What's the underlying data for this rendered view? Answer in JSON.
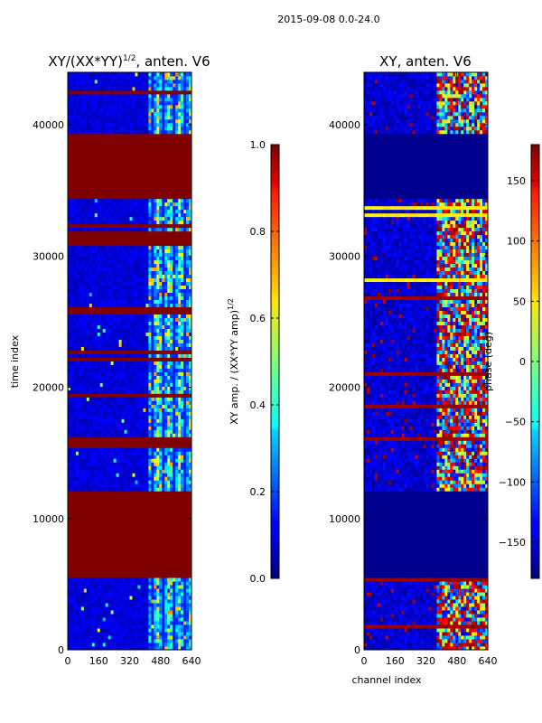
{
  "figure": {
    "suptitle": "2015-09-08 0.0-24.0"
  },
  "chart_data": [
    {
      "type": "heatmap",
      "title_main": "XY/(XX*YY)",
      "title_sup": "1/2",
      "title_tail": ", anten. V6",
      "xlabel": "",
      "ylabel": "time index",
      "xlim": [
        0,
        640
      ],
      "ylim": [
        0,
        44000
      ],
      "xticks": [
        0,
        160,
        320,
        480,
        640
      ],
      "yticks": [
        0,
        10000,
        20000,
        30000,
        40000
      ],
      "colorbar": {
        "label_main": "XY amp. / (XX*YY amp)",
        "label_sup": "1/2",
        "range": [
          0.0,
          1.0
        ],
        "ticks": [
          "0.0",
          "0.2",
          "0.4",
          "0.6",
          "0.8",
          "1.0"
        ],
        "tick_values": [
          0.0,
          0.2,
          0.4,
          0.6,
          0.8,
          1.0
        ]
      },
      "saturated_time_ranges": [
        [
          5500,
          12200
        ],
        [
          34300,
          39400
        ],
        [
          30900,
          31800
        ],
        [
          25700,
          26000
        ],
        [
          15800,
          16100
        ]
      ],
      "active_channel_range": [
        420,
        640
      ]
    },
    {
      "type": "heatmap",
      "title": "XY, anten. V6",
      "xlabel": "channel index",
      "ylabel": "",
      "xlim": [
        0,
        640
      ],
      "ylim": [
        0,
        44000
      ],
      "xticks": [
        0,
        160,
        320,
        480,
        640
      ],
      "yticks": [
        0,
        10000,
        20000,
        30000,
        40000
      ],
      "colorbar": {
        "label": "phase (deg)",
        "range": [
          -180,
          180
        ],
        "ticks": [
          "−150",
          "−100",
          "−50",
          "0",
          "50",
          "100",
          "150"
        ],
        "tick_values": [
          -150,
          -100,
          -50,
          0,
          50,
          100,
          150
        ]
      },
      "flat_time_ranges": [
        [
          5500,
          12200
        ],
        [
          34300,
          39400
        ]
      ],
      "active_channel_range": [
        380,
        640
      ]
    }
  ]
}
